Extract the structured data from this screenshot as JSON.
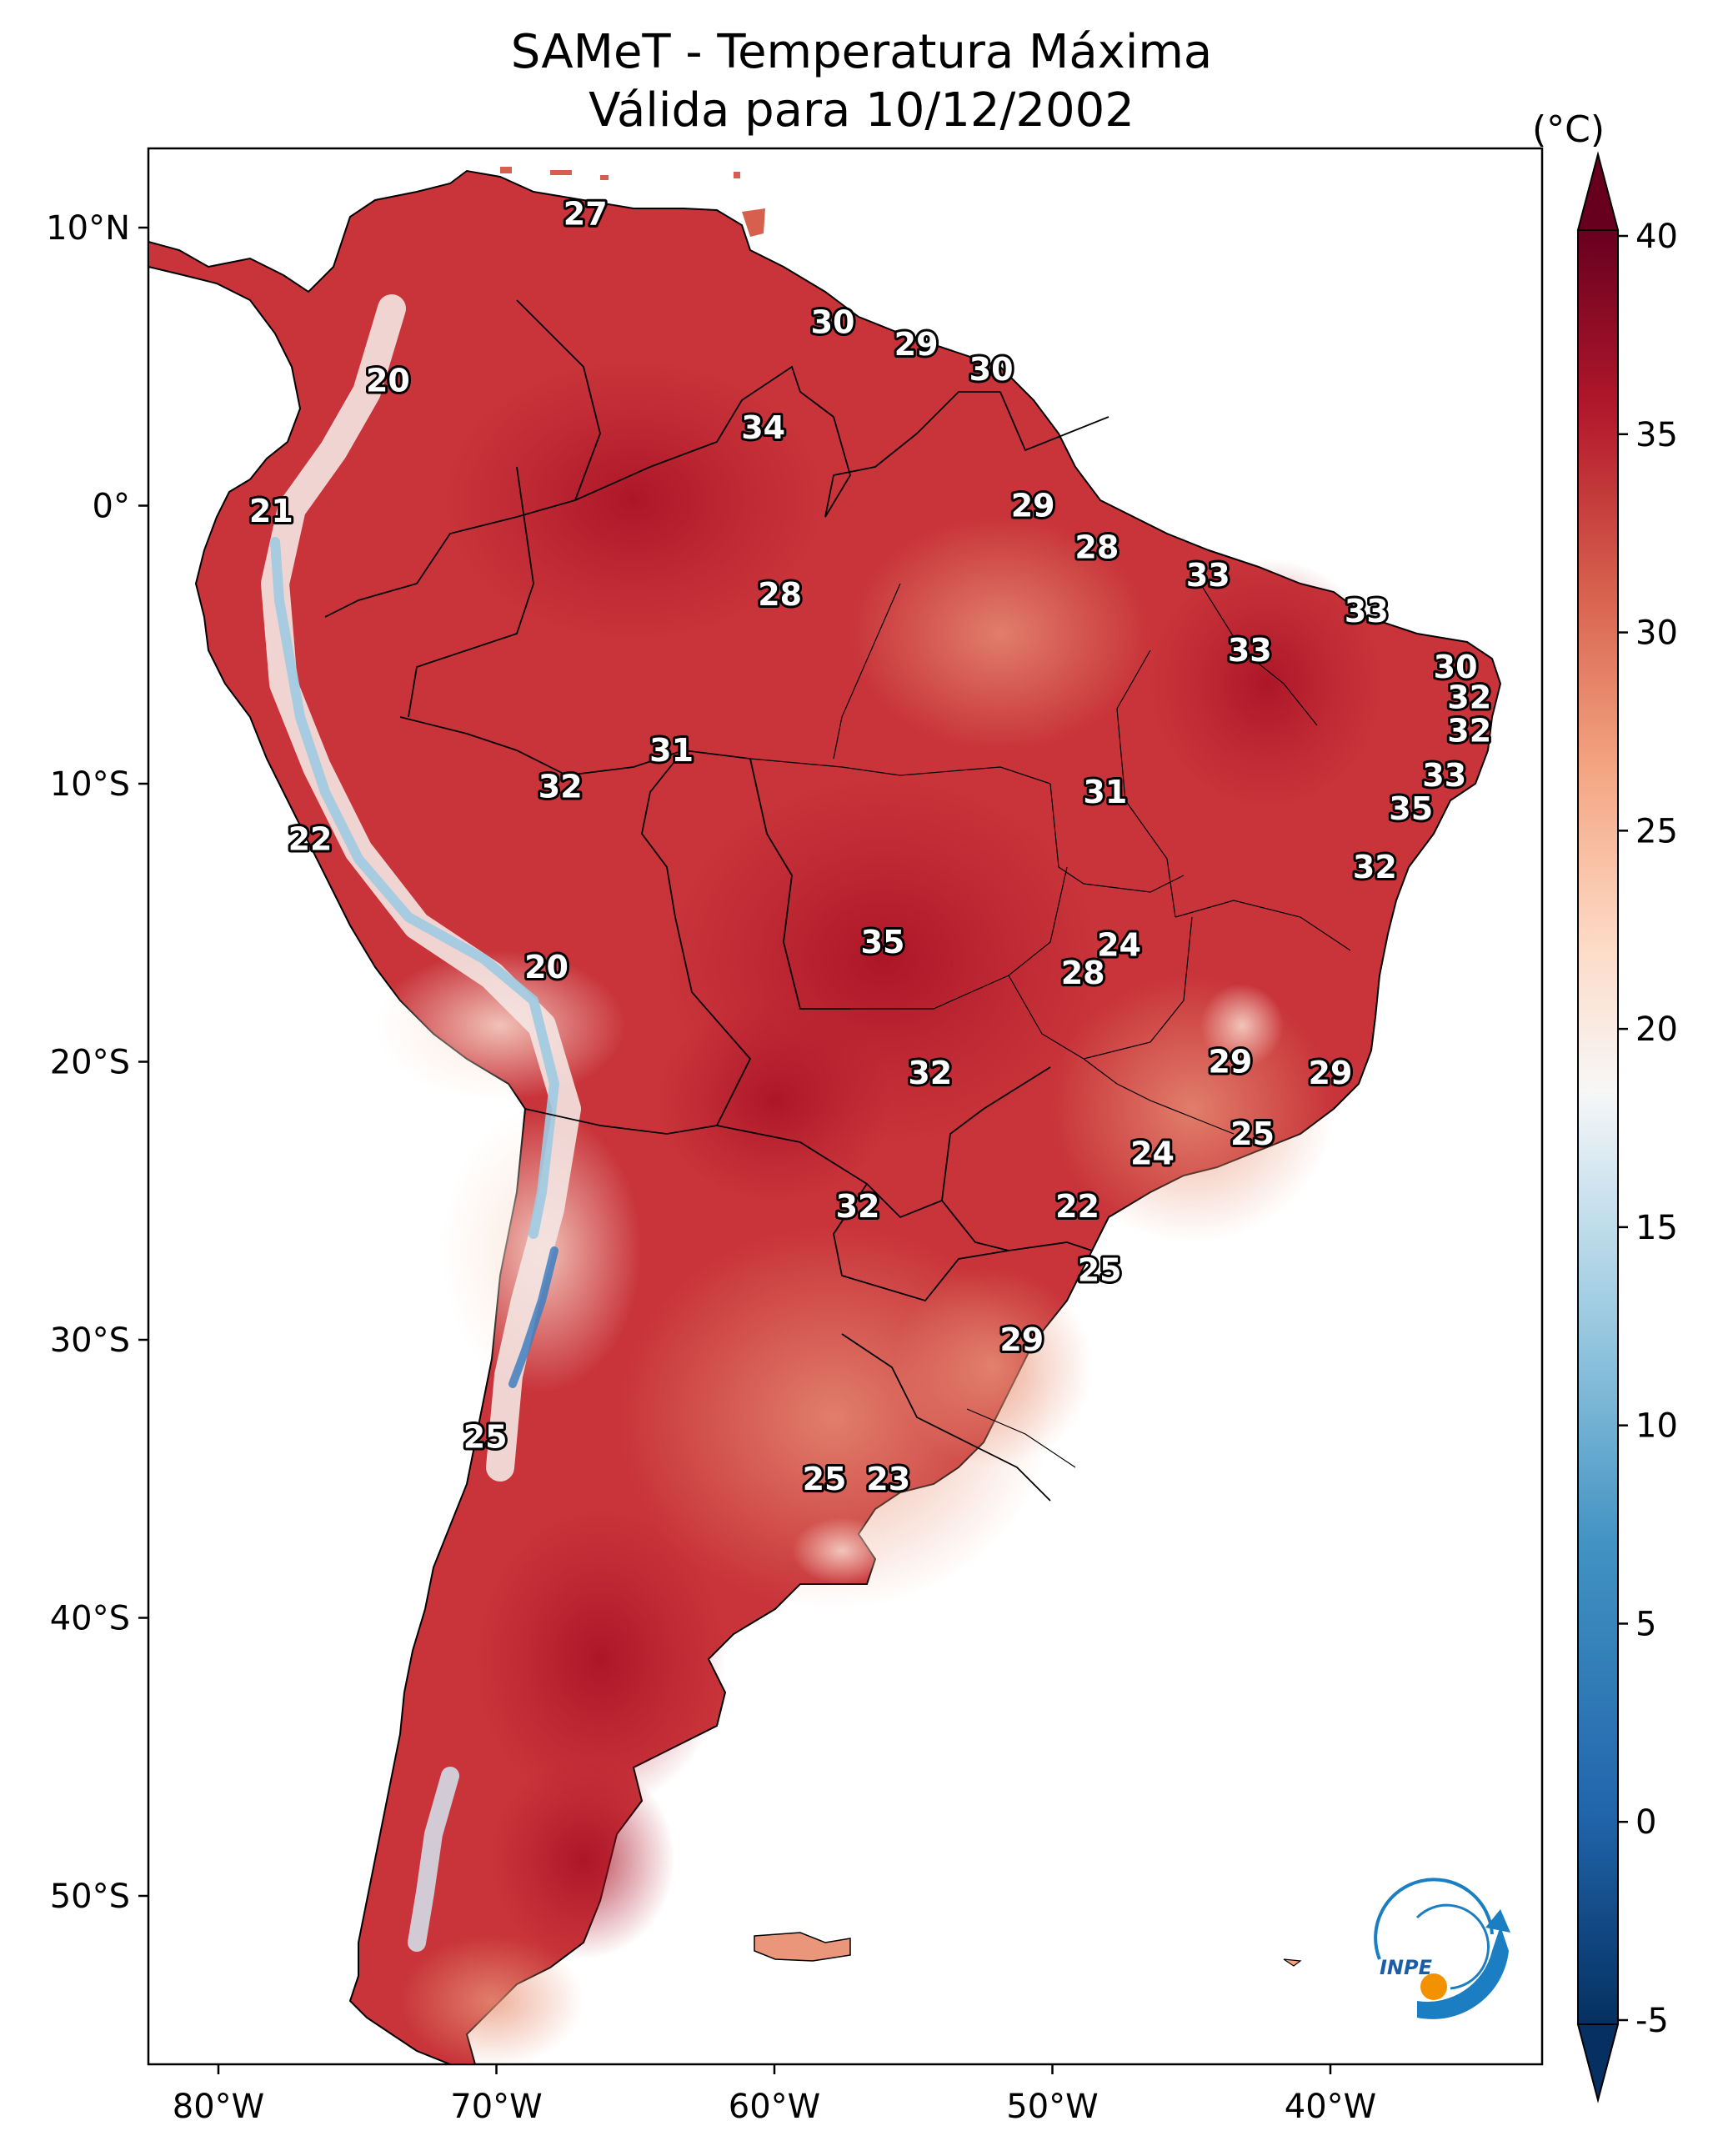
{
  "title": {
    "line1": "SAMeT - Temperatura Máxima",
    "line2": "Válida para 10/12/2002"
  },
  "axes": {
    "lon_labels": [
      "80°W",
      "70°W",
      "60°W",
      "50°W",
      "40°W"
    ],
    "lat_labels": [
      "10°N",
      "0°",
      "10°S",
      "20°S",
      "30°S",
      "40°S",
      "50°S"
    ]
  },
  "colorbar": {
    "unit": "(°C)",
    "ticks": [
      "40",
      "35",
      "30",
      "25",
      "20",
      "15",
      "10",
      "5",
      "0",
      "-5"
    ],
    "range": [
      -5,
      40
    ],
    "colormap": "RdBu_r",
    "low_color": "#0a3a72",
    "high_color": "#67001f",
    "mid_color": "#f7f7f7"
  },
  "contour_labels": [
    {
      "text": "27",
      "lon": -66.8,
      "lat": 10.5
    },
    {
      "text": "30",
      "lon": -57.9,
      "lat": 6.6
    },
    {
      "text": "29",
      "lon": -54.9,
      "lat": 5.8
    },
    {
      "text": "30",
      "lon": -52.2,
      "lat": 4.9
    },
    {
      "text": "20",
      "lon": -73.9,
      "lat": 4.5
    },
    {
      "text": "34",
      "lon": -60.4,
      "lat": 2.8
    },
    {
      "text": "21",
      "lon": -78.1,
      "lat": -0.2
    },
    {
      "text": "29",
      "lon": -50.7,
      "lat": 0.0
    },
    {
      "text": "28",
      "lon": -48.4,
      "lat": -1.5
    },
    {
      "text": "33",
      "lon": -44.4,
      "lat": -2.5
    },
    {
      "text": "28",
      "lon": -59.8,
      "lat": -3.2
    },
    {
      "text": "33",
      "lon": -38.7,
      "lat": -3.8
    },
    {
      "text": "33",
      "lon": -42.9,
      "lat": -5.2
    },
    {
      "text": "30",
      "lon": -35.5,
      "lat": -5.8
    },
    {
      "text": "32",
      "lon": -35.0,
      "lat": -6.9
    },
    {
      "text": "32",
      "lon": -35.0,
      "lat": -8.1
    },
    {
      "text": "31",
      "lon": -63.7,
      "lat": -8.8
    },
    {
      "text": "32",
      "lon": -67.7,
      "lat": -10.1
    },
    {
      "text": "31",
      "lon": -48.1,
      "lat": -10.3
    },
    {
      "text": "33",
      "lon": -35.9,
      "lat": -9.7
    },
    {
      "text": "35",
      "lon": -37.1,
      "lat": -10.9
    },
    {
      "text": "22",
      "lon": -76.7,
      "lat": -12.0
    },
    {
      "text": "32",
      "lon": -38.4,
      "lat": -13.0
    },
    {
      "text": "35",
      "lon": -56.1,
      "lat": -15.7
    },
    {
      "text": "24",
      "lon": -47.6,
      "lat": -15.8
    },
    {
      "text": "28",
      "lon": -48.9,
      "lat": -16.8
    },
    {
      "text": "20",
      "lon": -68.2,
      "lat": -16.6
    },
    {
      "text": "29",
      "lon": -43.6,
      "lat": -20.0
    },
    {
      "text": "32",
      "lon": -54.4,
      "lat": -20.4
    },
    {
      "text": "29",
      "lon": -40.0,
      "lat": -20.4
    },
    {
      "text": "25",
      "lon": -42.8,
      "lat": -22.6
    },
    {
      "text": "24",
      "lon": -46.4,
      "lat": -23.3
    },
    {
      "text": "22",
      "lon": -49.1,
      "lat": -25.2
    },
    {
      "text": "32",
      "lon": -57.0,
      "lat": -25.2
    },
    {
      "text": "25",
      "lon": -48.3,
      "lat": -27.5
    },
    {
      "text": "29",
      "lon": -51.1,
      "lat": -30.0
    },
    {
      "text": "25",
      "lon": -70.4,
      "lat": -33.5
    },
    {
      "text": "25",
      "lon": -58.2,
      "lat": -35.0
    },
    {
      "text": "23",
      "lon": -55.9,
      "lat": -35.0
    }
  ],
  "logo": {
    "text": "INPE"
  }
}
